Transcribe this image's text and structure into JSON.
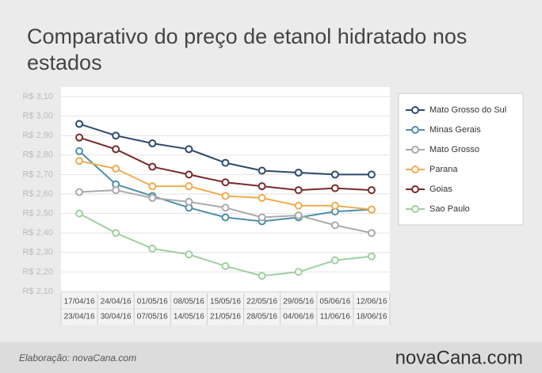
{
  "chart_data": {
    "type": "line",
    "title": "Comparativo do preço de etanol hidratado nos estados",
    "categories": [
      [
        "17/04/16",
        "23/04/16"
      ],
      [
        "24/04/16",
        "30/04/16"
      ],
      [
        "01/05/16",
        "07/05/16"
      ],
      [
        "08/05/16",
        "14/05/16"
      ],
      [
        "15/05/16",
        "21/05/16"
      ],
      [
        "22/05/16",
        "28/05/16"
      ],
      [
        "29/05/16",
        "04/06/16"
      ],
      [
        "05/06/16",
        "11/06/16"
      ],
      [
        "12/06/16",
        "18/06/16"
      ]
    ],
    "series": [
      {
        "name": "Mato Grosso do Sul",
        "color": "#2c4a6e",
        "values": [
          2.96,
          2.9,
          2.86,
          2.83,
          2.76,
          2.72,
          2.71,
          2.7,
          2.7
        ]
      },
      {
        "name": "Minas Gerais",
        "color": "#4e8fa8",
        "values": [
          2.82,
          2.65,
          2.59,
          2.53,
          2.48,
          2.46,
          2.48,
          2.51,
          2.52
        ]
      },
      {
        "name": "Mato Grosso",
        "color": "#aaaaaa",
        "values": [
          2.61,
          2.62,
          2.58,
          2.56,
          2.53,
          2.48,
          2.49,
          2.44,
          2.4
        ]
      },
      {
        "name": "Parana",
        "color": "#f0ac50",
        "values": [
          2.77,
          2.73,
          2.64,
          2.64,
          2.59,
          2.58,
          2.54,
          2.54,
          2.52
        ]
      },
      {
        "name": "Goias",
        "color": "#7a2a2a",
        "values": [
          2.89,
          2.83,
          2.74,
          2.7,
          2.66,
          2.64,
          2.62,
          2.63,
          2.62
        ]
      },
      {
        "name": "Sao Paulo",
        "color": "#9fd0a0",
        "values": [
          2.5,
          2.4,
          2.32,
          2.29,
          2.23,
          2.18,
          2.2,
          2.26,
          2.28
        ]
      }
    ],
    "ylim": [
      2.1,
      3.1
    ],
    "yticks": [
      {
        "value": 2.1,
        "label": "R$ 2,10"
      },
      {
        "value": 2.2,
        "label": "R$ 2,20"
      },
      {
        "value": 2.3,
        "label": "R$ 2,30"
      },
      {
        "value": 2.4,
        "label": "R$ 2,40"
      },
      {
        "value": 2.5,
        "label": "R$ 2,50"
      },
      {
        "value": 2.6,
        "label": "R$ 2,60"
      },
      {
        "value": 2.7,
        "label": "R$ 2,70"
      },
      {
        "value": 2.8,
        "label": "R$ 2,80"
      },
      {
        "value": 2.9,
        "label": "R$ 2,90"
      },
      {
        "value": 3.0,
        "label": "R$ 3,00"
      },
      {
        "value": 3.1,
        "label": "R$ 3,10"
      }
    ],
    "grid": true,
    "legend": "right",
    "source": "Elaboração: novaCana.com",
    "logo": "novaCana.com"
  }
}
